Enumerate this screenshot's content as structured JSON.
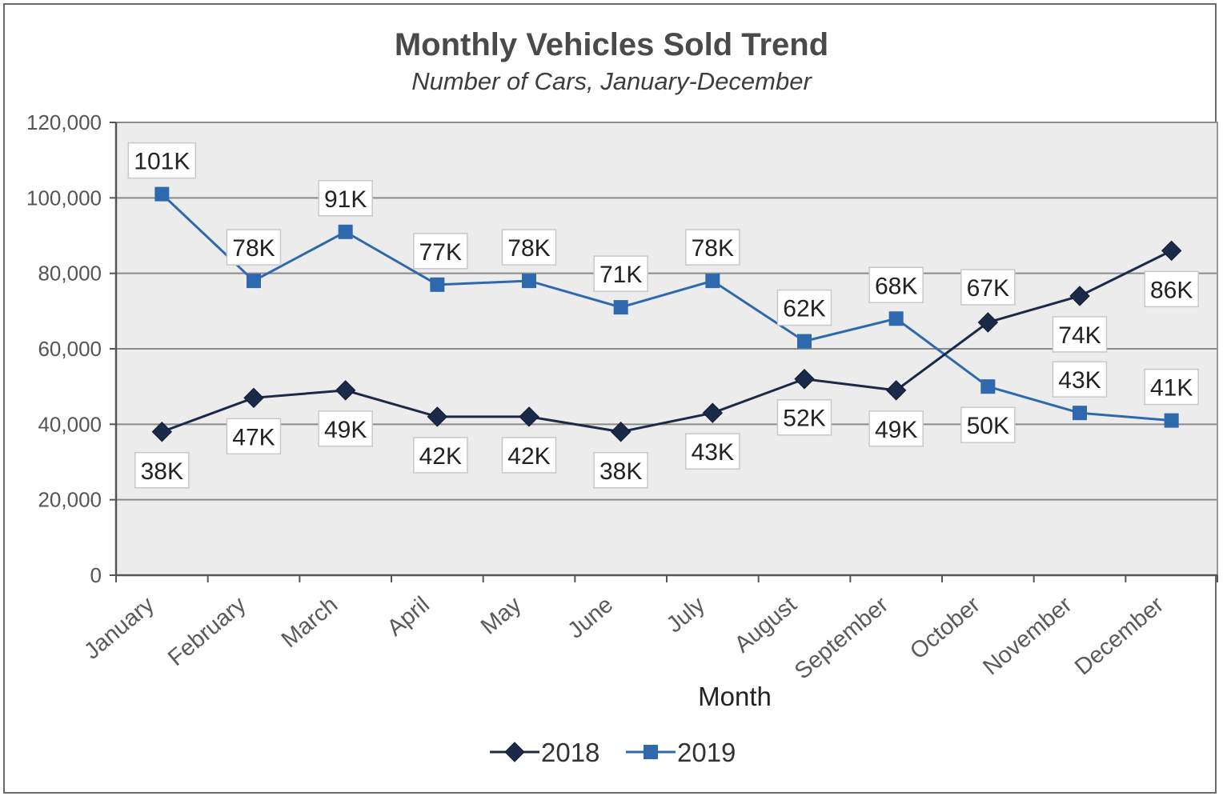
{
  "chart_data": {
    "type": "line",
    "title": "Monthly Vehicles Sold Trend",
    "subtitle": "Number of Cars, January-December",
    "xlabel": "Month",
    "ylabel": "",
    "ylim": [
      0,
      120000
    ],
    "yticks": [
      0,
      20000,
      40000,
      60000,
      80000,
      100000,
      120000
    ],
    "ytick_labels": [
      "0",
      "20,000",
      "40,000",
      "60,000",
      "80,000",
      "100,000",
      "120,000"
    ],
    "grid": true,
    "legend_position": "bottom",
    "categories": [
      "January",
      "February",
      "March",
      "April",
      "May",
      "June",
      "July",
      "August",
      "September",
      "October",
      "November",
      "December"
    ],
    "series": [
      {
        "name": "2018",
        "marker": "diamond",
        "color": "#1a2a48",
        "values": [
          38000,
          47000,
          49000,
          42000,
          42000,
          38000,
          43000,
          52000,
          49000,
          67000,
          74000,
          86000
        ],
        "labels": [
          "38K",
          "47K",
          "49K",
          "42K",
          "42K",
          "38K",
          "43K",
          "52K",
          "49K",
          "67K",
          "74K",
          "86K"
        ]
      },
      {
        "name": "2019",
        "marker": "square",
        "color": "#2e69ad",
        "values": [
          101000,
          78000,
          91000,
          77000,
          78000,
          71000,
          78000,
          62000,
          68000,
          50000,
          43000,
          41000
        ],
        "labels": [
          "101K",
          "78K",
          "91K",
          "77K",
          "78K",
          "71K",
          "78K",
          "62K",
          "68K",
          "50K",
          "43K",
          "41K"
        ]
      }
    ]
  }
}
